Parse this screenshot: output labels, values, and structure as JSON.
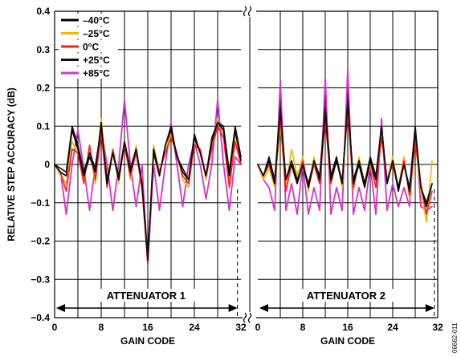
{
  "chart_data": {
    "type": "line",
    "ylabel": "RELATIVE STEP ACCURACY (dB)",
    "ylim": [
      -0.4,
      0.4
    ],
    "yticks": [
      {
        "v": 0.4,
        "t": "0.4"
      },
      {
        "v": 0.3,
        "t": "0.3"
      },
      {
        "v": 0.2,
        "t": "0.2"
      },
      {
        "v": 0.1,
        "t": "0.1"
      },
      {
        "v": 0.0,
        "t": "0"
      },
      {
        "v": -0.1,
        "t": "−0.1"
      },
      {
        "v": -0.2,
        "t": "−0.2"
      },
      {
        "v": -0.3,
        "t": "−0.3"
      },
      {
        "v": -0.4,
        "t": "−0.4"
      }
    ],
    "grid": true,
    "legend_position": "top-left",
    "figure_id": "06662-011",
    "colors": {
      "series_m40": "#000000",
      "series_m25": "#f5b800",
      "series_0": "#ff1a1a",
      "series_p25": "#111111",
      "series_p85": "#d633c7"
    },
    "panels": [
      {
        "xlabel": "GAIN CODE",
        "xlim": [
          0,
          32
        ],
        "xticks": [
          "0",
          "8",
          "16",
          "24",
          "32"
        ],
        "annotation": "ATTENUATOR 1",
        "series": [
          {
            "name": "–40°C",
            "values": [
              0.0,
              -0.02,
              -0.03,
              0.09,
              0.04,
              -0.03,
              0.02,
              -0.02,
              0.11,
              -0.05,
              0.03,
              -0.04,
              0.06,
              -0.02,
              0.04,
              -0.05,
              -0.25,
              0.04,
              -0.03,
              0.05,
              0.09,
              0.02,
              -0.02,
              -0.04,
              0.07,
              0.03,
              -0.03,
              0.06,
              0.11,
              0.09,
              -0.03,
              0.09,
              0.01
            ]
          },
          {
            "name": "–25°C",
            "values": [
              0.0,
              -0.03,
              -0.05,
              0.06,
              0.03,
              -0.04,
              0.04,
              -0.05,
              0.12,
              -0.04,
              0.04,
              -0.05,
              0.06,
              -0.04,
              0.05,
              -0.07,
              -0.25,
              0.05,
              -0.02,
              0.04,
              0.08,
              0.03,
              -0.04,
              -0.06,
              0.06,
              0.04,
              -0.04,
              0.05,
              0.12,
              0.08,
              -0.05,
              0.08,
              0.0
            ]
          },
          {
            "name": "0°C",
            "values": [
              0.0,
              -0.02,
              -0.07,
              0.04,
              0.03,
              -0.05,
              0.05,
              -0.04,
              0.08,
              -0.06,
              0.04,
              -0.04,
              0.05,
              -0.03,
              0.03,
              -0.06,
              -0.26,
              0.04,
              -0.02,
              0.03,
              0.07,
              0.03,
              -0.03,
              -0.05,
              0.05,
              0.04,
              -0.03,
              0.04,
              0.1,
              0.07,
              -0.06,
              0.06,
              0.0
            ]
          },
          {
            "name": "+25°C",
            "values": [
              0.0,
              -0.01,
              -0.02,
              0.1,
              0.05,
              -0.02,
              0.03,
              -0.01,
              0.1,
              -0.04,
              0.03,
              -0.03,
              0.06,
              -0.01,
              0.04,
              -0.05,
              -0.24,
              0.03,
              -0.03,
              0.05,
              0.1,
              0.02,
              -0.01,
              -0.04,
              0.08,
              0.03,
              -0.03,
              0.07,
              0.11,
              0.1,
              -0.02,
              0.1,
              0.02
            ]
          },
          {
            "name": "+85°C",
            "values": [
              0.0,
              -0.02,
              -0.13,
              0.0,
              0.09,
              -0.01,
              -0.12,
              0.0,
              0.09,
              0.0,
              -0.12,
              0.0,
              0.17,
              0.0,
              -0.11,
              0.0,
              -0.26,
              0.0,
              -0.12,
              0.0,
              0.11,
              0.0,
              -0.11,
              0.0,
              0.06,
              0.0,
              -0.09,
              0.0,
              0.17,
              0.0,
              -0.12,
              0.02,
              0.0
            ]
          }
        ]
      },
      {
        "xlabel": "GAIN CODE",
        "xlim": [
          0,
          32
        ],
        "xticks": [
          "0",
          "8",
          "16",
          "24",
          "32"
        ],
        "annotation": "ATTENUATOR 2",
        "series": [
          {
            "name": "–40°C",
            "values": [
              0.0,
              -0.03,
              0.01,
              -0.05,
              0.14,
              -0.04,
              0.0,
              -0.05,
              0.0,
              -0.06,
              0.01,
              -0.04,
              0.14,
              -0.04,
              0.01,
              -0.05,
              0.17,
              -0.05,
              0.0,
              -0.06,
              0.01,
              -0.04,
              0.1,
              -0.05,
              0.01,
              -0.07,
              0.0,
              -0.07,
              0.09,
              -0.06,
              -0.11,
              -0.05
            ]
          },
          {
            "name": "–25°C",
            "values": [
              0.0,
              -0.04,
              -0.01,
              -0.06,
              0.1,
              -0.06,
              0.04,
              -0.03,
              0.02,
              -0.07,
              0.02,
              -0.05,
              0.12,
              -0.05,
              0.02,
              -0.06,
              0.14,
              -0.07,
              0.02,
              -0.05,
              0.0,
              -0.06,
              0.09,
              -0.04,
              0.02,
              -0.06,
              0.02,
              -0.09,
              0.06,
              -0.07,
              -0.15,
              0.01
            ]
          },
          {
            "name": "0°C",
            "values": [
              0.0,
              -0.03,
              0.0,
              -0.05,
              0.12,
              -0.07,
              0.0,
              -0.05,
              0.01,
              -0.06,
              0.0,
              -0.05,
              0.12,
              -0.05,
              0.01,
              -0.04,
              0.14,
              -0.06,
              0.01,
              -0.05,
              0.01,
              -0.06,
              0.07,
              -0.04,
              0.0,
              -0.06,
              0.01,
              -0.08,
              0.06,
              -0.05,
              -0.13,
              -0.07
            ]
          },
          {
            "name": "+25°C",
            "values": [
              0.0,
              -0.03,
              0.02,
              -0.04,
              0.15,
              -0.04,
              0.01,
              -0.04,
              0.0,
              -0.05,
              0.01,
              -0.03,
              0.15,
              -0.03,
              0.02,
              -0.05,
              0.16,
              -0.04,
              0.01,
              -0.05,
              0.02,
              -0.03,
              0.1,
              -0.05,
              0.01,
              -0.06,
              0.0,
              -0.06,
              0.1,
              -0.06,
              -0.1,
              -0.05
            ]
          },
          {
            "name": "+85°C",
            "values": [
              0.0,
              -0.04,
              -0.06,
              -0.12,
              0.22,
              -0.12,
              -0.05,
              -0.13,
              0.0,
              -0.13,
              -0.06,
              -0.12,
              0.23,
              -0.13,
              -0.06,
              -0.12,
              0.25,
              -0.13,
              -0.06,
              -0.12,
              0.0,
              -0.13,
              0.12,
              -0.12,
              -0.05,
              -0.11,
              -0.06,
              -0.11,
              0.1,
              -0.11,
              -0.12,
              -0.11
            ]
          }
        ]
      }
    ]
  }
}
